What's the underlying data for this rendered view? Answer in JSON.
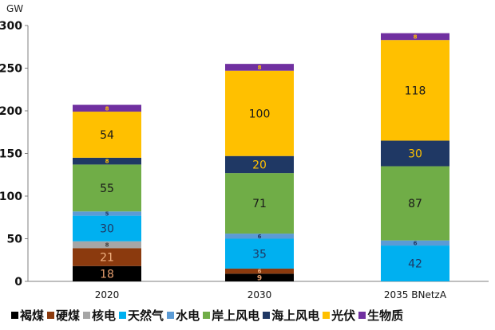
{
  "chart_data": {
    "type": "bar",
    "stacked": true,
    "ylabel": "GW",
    "ylim": [
      0,
      300
    ],
    "yticks": [
      0,
      50,
      100,
      150,
      200,
      250,
      300
    ],
    "categories": [
      "2020",
      "2030",
      "2035 BNetzA"
    ],
    "grid": false,
    "legend_position": "bottom",
    "series": [
      {
        "name": "褐煤",
        "color": "#000000",
        "label_color": "#e8a070",
        "values": [
          18,
          9,
          0
        ],
        "labels": [
          "18",
          "9",
          ""
        ]
      },
      {
        "name": "硬煤",
        "color": "#8b3a0e",
        "label_color": "#f0b080",
        "values": [
          21,
          6,
          0
        ],
        "labels": [
          "21",
          "6",
          ""
        ]
      },
      {
        "name": "核电",
        "color": "#a6a6a6",
        "label_color": "#404040",
        "values": [
          8,
          0,
          0
        ],
        "labels": [
          "8",
          "",
          ""
        ]
      },
      {
        "name": "天然气",
        "color": "#00b0f0",
        "label_color": "#1f3864",
        "values": [
          30,
          35,
          42
        ],
        "labels": [
          "30",
          "35",
          "42"
        ]
      },
      {
        "name": "水电",
        "color": "#5b9bd5",
        "label_color": "#1f3864",
        "values": [
          5,
          6,
          6
        ],
        "labels": [
          "5",
          "6",
          "6"
        ]
      },
      {
        "name": "岸上风电",
        "color": "#70ad47",
        "label_color": "#1a1a1a",
        "values": [
          55,
          71,
          87
        ],
        "labels": [
          "55",
          "71",
          "87"
        ]
      },
      {
        "name": "海上风电",
        "color": "#1f3864",
        "label_color": "#ffc000",
        "values": [
          8,
          20,
          30
        ],
        "labels": [
          "8",
          "20",
          "30"
        ]
      },
      {
        "name": "光伏",
        "color": "#ffc000",
        "label_color": "#1a1a1a",
        "values": [
          54,
          100,
          118
        ],
        "labels": [
          "54",
          "100",
          "118"
        ]
      },
      {
        "name": "生物质",
        "color": "#7030a0",
        "label_color": "#ffc000",
        "values": [
          8,
          8,
          8
        ],
        "labels": [
          "8",
          "8",
          "8"
        ]
      }
    ]
  }
}
